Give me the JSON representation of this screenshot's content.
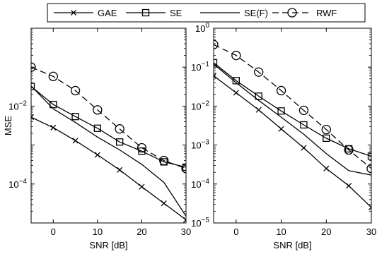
{
  "chart_data": [
    {
      "type": "line",
      "xlabel": "SNR [dB]",
      "ylabel": "MSE",
      "xscale": "linear",
      "yscale": "log",
      "xlim": [
        -5,
        30
      ],
      "ylim": [
        1e-05,
        1
      ],
      "xticks": [
        0,
        10,
        20,
        30
      ],
      "ytick_labels": [
        "10^-4",
        "10^-2"
      ],
      "legend_position": "top, spanning both panels",
      "grid": false,
      "series": [
        {
          "name": "GAE",
          "marker": "x",
          "line": "solid",
          "x": [
            -5,
            0,
            5,
            10,
            15,
            20,
            25,
            30
          ],
          "y": [
            0.0052,
            0.0028,
            0.0013,
            0.00056,
            0.00023,
            8.5e-05,
            3.2e-05,
            1.2e-05
          ]
        },
        {
          "name": "SE",
          "marker": "square",
          "line": "solid",
          "x": [
            -5,
            0,
            5,
            10,
            15,
            20,
            25,
            30
          ],
          "y": [
            0.032,
            0.011,
            0.0054,
            0.0027,
            0.0012,
            0.0007,
            0.00037,
            0.00027
          ]
        },
        {
          "name": "SE(F)",
          "marker": "none",
          "line": "solid",
          "x": [
            -5,
            0,
            5,
            10,
            15,
            20,
            25,
            30
          ],
          "y": [
            0.033,
            0.0085,
            0.0038,
            0.0016,
            0.00075,
            0.00032,
            0.00011,
            1.5e-05
          ]
        },
        {
          "name": "RWF",
          "marker": "circle",
          "line": "dashed",
          "x": [
            -5,
            0,
            5,
            10,
            15,
            20,
            25,
            30
          ],
          "y": [
            0.1,
            0.058,
            0.025,
            0.008,
            0.0026,
            0.00085,
            0.0004,
            0.00025
          ]
        }
      ]
    },
    {
      "type": "line",
      "xlabel": "SNR [dB]",
      "ylabel": "",
      "xscale": "linear",
      "yscale": "log",
      "xlim": [
        -5,
        30
      ],
      "ylim": [
        1e-05,
        1
      ],
      "xticks": [
        0,
        10,
        20,
        30
      ],
      "ytick_labels": [
        "10^-5",
        "10^-4",
        "10^-3",
        "10^-2",
        "10^-1",
        "10^0"
      ],
      "grid": false,
      "series": [
        {
          "name": "GAE",
          "marker": "x",
          "line": "solid",
          "x": [
            -5,
            0,
            5,
            10,
            15,
            20,
            25,
            30
          ],
          "y": [
            0.06,
            0.022,
            0.008,
            0.0026,
            0.00085,
            0.00025,
            9e-05,
            2.5e-05
          ]
        },
        {
          "name": "SE",
          "marker": "square",
          "line": "solid",
          "x": [
            -5,
            0,
            5,
            10,
            15,
            20,
            25,
            30
          ],
          "y": [
            0.13,
            0.045,
            0.018,
            0.0075,
            0.0033,
            0.0015,
            0.0008,
            0.00052
          ]
        },
        {
          "name": "SE(F)",
          "marker": "none",
          "line": "solid",
          "x": [
            -5,
            0,
            5,
            10,
            15,
            20,
            25,
            30
          ],
          "y": [
            0.12,
            0.04,
            0.014,
            0.0052,
            0.0019,
            0.0006,
            0.00022,
            0.00017
          ]
        },
        {
          "name": "RWF",
          "marker": "circle",
          "line": "dashed",
          "x": [
            -5,
            0,
            5,
            10,
            15,
            20,
            25,
            30
          ],
          "y": [
            0.38,
            0.2,
            0.075,
            0.025,
            0.0078,
            0.0025,
            0.00075,
            0.00025
          ]
        }
      ]
    }
  ],
  "colors": {
    "line": "#000000",
    "background": "#ffffff"
  }
}
